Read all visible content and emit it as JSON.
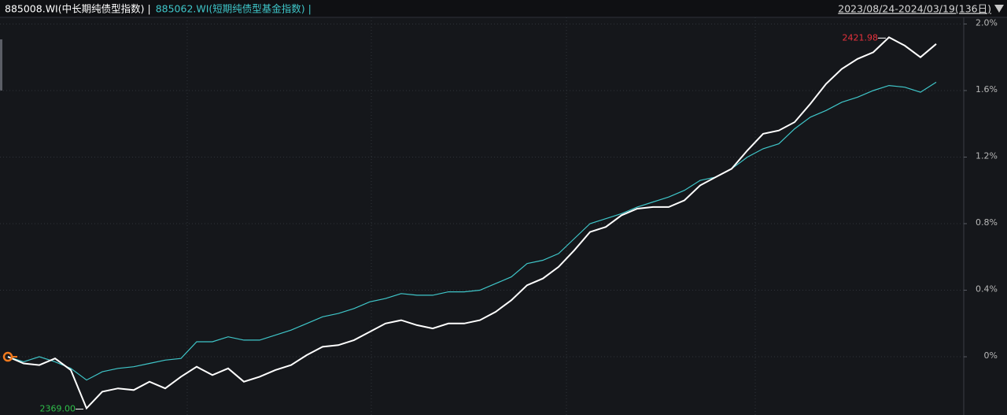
{
  "chart_data": {
    "type": "line",
    "header_range": "2023/08/24-2024/03/19(136日)",
    "categories": [
      null,
      null,
      null,
      null,
      null,
      null,
      null,
      null,
      null,
      null,
      null,
      null,
      null,
      null,
      null,
      null,
      null,
      null,
      null,
      null,
      null,
      null,
      null,
      null,
      null,
      null,
      null,
      null,
      null,
      null,
      null,
      null,
      null,
      null,
      null,
      null,
      null,
      null,
      null,
      null,
      null,
      null,
      null,
      null,
      null,
      null,
      null,
      null,
      null,
      null,
      null,
      null,
      null,
      null,
      null,
      null,
      null,
      null,
      null,
      null
    ],
    "series": [
      {
        "name": "885008.WI(中长期纯债型指数) |",
        "color": "#ffffff",
        "values": [
          0,
          -0.04,
          -0.05,
          -0.01,
          -0.08,
          -0.31,
          -0.21,
          -0.19,
          -0.2,
          -0.15,
          -0.19,
          -0.12,
          -0.06,
          -0.11,
          -0.07,
          -0.15,
          -0.12,
          -0.08,
          -0.05,
          0.01,
          0.06,
          0.07,
          0.1,
          0.15,
          0.2,
          0.22,
          0.19,
          0.17,
          0.2,
          0.2,
          0.22,
          0.27,
          0.34,
          0.43,
          0.47,
          0.54,
          0.64,
          0.75,
          0.78,
          0.85,
          0.89,
          0.9,
          0.9,
          0.94,
          1.03,
          1.08,
          1.13,
          1.24,
          1.34,
          1.36,
          1.41,
          1.52,
          1.64,
          1.73,
          1.79,
          1.83,
          1.92,
          1.87,
          1.8,
          1.88
        ]
      },
      {
        "name": "885062.WI(短期纯债型基金指数) |",
        "color": "#3fc6c9",
        "values": [
          0,
          -0.03,
          0,
          -0.03,
          -0.07,
          -0.14,
          -0.09,
          -0.07,
          -0.06,
          -0.04,
          -0.02,
          -0.01,
          0.09,
          0.09,
          0.12,
          0.1,
          0.1,
          0.13,
          0.16,
          0.2,
          0.24,
          0.26,
          0.29,
          0.33,
          0.35,
          0.38,
          0.37,
          0.37,
          0.39,
          0.39,
          0.4,
          0.44,
          0.48,
          0.56,
          0.58,
          0.62,
          0.71,
          0.8,
          0.83,
          0.86,
          0.9,
          0.93,
          0.96,
          1.0,
          1.06,
          1.08,
          1.13,
          1.2,
          1.25,
          1.28,
          1.37,
          1.44,
          1.48,
          1.53,
          1.56,
          1.6,
          1.63,
          1.62,
          1.59,
          1.65
        ]
      }
    ],
    "annotations": [
      {
        "text": "2421.98",
        "color": "#e8323c",
        "at": "max"
      },
      {
        "text": "2369.00",
        "color": "#2fbf4a",
        "at": "min"
      }
    ],
    "ylim": [
      -0.35,
      2.04
    ],
    "yticks": [
      {
        "value": 0,
        "label": "0%"
      },
      {
        "value": 0.4,
        "label": "0.4%"
      },
      {
        "value": 0.8,
        "label": "0.8%"
      },
      {
        "value": 1.2,
        "label": "1.2%"
      },
      {
        "value": 1.6,
        "label": "1.6%"
      },
      {
        "value": 2.0,
        "label": "2.0%"
      }
    ],
    "grid": true
  }
}
